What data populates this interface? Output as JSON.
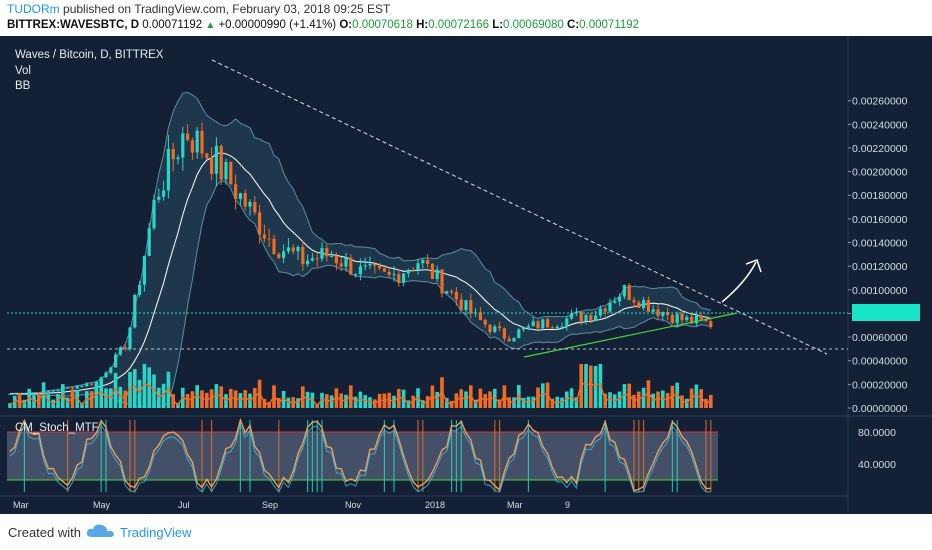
{
  "header": {
    "author": "TUDORm",
    "published_text": "published on TradingView.com, February 03, 2018 09:25 EST",
    "symbol": "BITTREX:WAVESBTC, D",
    "last_price": "0.00071192",
    "change": "+0.00000990 (+1.41%)",
    "open_label": "O:",
    "open": "0.00070618",
    "high_label": "H:",
    "high": "0.00072166",
    "low_label": "L:",
    "low": "0.00069080",
    "close_label": "C:",
    "close": "0.00071192"
  },
  "legend": {
    "title": "Waves / Bitcoin, D, BITTREX",
    "vol": "Vol",
    "bb": "BB",
    "stoch": "CM_Stoch_MTF"
  },
  "price_axis": [
    "0.00260000",
    "0.00240000",
    "0.00220000",
    "0.00200000",
    "0.00180000",
    "0.00160000",
    "0.00140000",
    "0.00120000",
    "0.00100000",
    "0.00080000",
    "0.00060000",
    "0.00040000",
    "0.00020000",
    "0.00000000"
  ],
  "stoch_axis": [
    "80.0000",
    "40.0000"
  ],
  "time_axis": [
    "Mar",
    "May",
    "Jul",
    "Sep",
    "Nov",
    "2018",
    "Mar",
    "9"
  ],
  "colors": {
    "background": "#132035",
    "bull": "#26d6c6",
    "bear": "#f26b22",
    "price_tag": "#19e5c8",
    "brand": "#2196f3"
  },
  "chart_data": {
    "type": "candlestick",
    "title": "Waves / Bitcoin, D, BITTREX",
    "ylim": [
      0,
      0.0027
    ],
    "x": [
      "Mar",
      "May",
      "Jul",
      "Sep",
      "Nov",
      "2018",
      "Mar",
      "9"
    ],
    "close_series": [
      0.00012,
      0.00013,
      0.00017,
      0.00022,
      0.00055,
      0.0018,
      0.00235,
      0.0021,
      0.00175,
      0.0014,
      0.00125,
      0.0013,
      0.00115,
      0.0011,
      0.00125,
      0.001,
      0.00075,
      0.0006,
      0.0007,
      0.00075,
      0.0008,
      0.001,
      0.00085,
      0.00075,
      0.000712
    ],
    "annotations": [
      "descending trendline",
      "ascending trendline",
      "breakout arrow"
    ]
  },
  "footer": {
    "created_with": "Created with",
    "brand": "TradingView"
  }
}
